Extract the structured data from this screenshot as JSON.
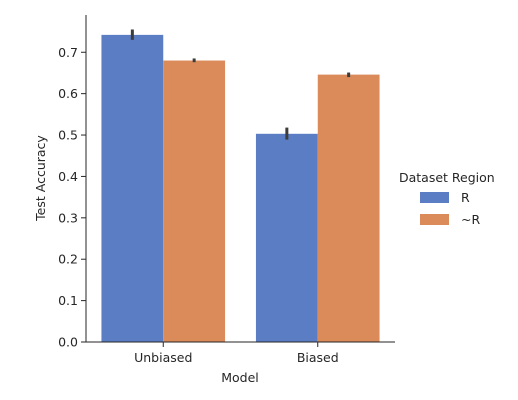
{
  "chart_data": {
    "type": "bar",
    "title": "",
    "xlabel": "Model",
    "ylabel": "Test Accuracy",
    "categories": [
      "Unbiased",
      "Biased"
    ],
    "ylim": [
      0,
      0.79
    ],
    "yticks": [
      "0.0",
      "0.1",
      "0.2",
      "0.3",
      "0.4",
      "0.5",
      "0.6",
      "0.7"
    ],
    "legend": {
      "title": "Dataset Region",
      "position": "right"
    },
    "series": [
      {
        "name": "R",
        "color": "#5a7dc4",
        "values": [
          0.742,
          0.503
        ],
        "err_low": [
          0.73,
          0.489
        ],
        "err_high": [
          0.755,
          0.518
        ]
      },
      {
        "name": "~R",
        "color": "#db8b5a",
        "values": [
          0.68,
          0.646
        ],
        "err_low": [
          0.676,
          0.64
        ],
        "err_high": [
          0.685,
          0.651
        ]
      }
    ],
    "grid": false
  }
}
